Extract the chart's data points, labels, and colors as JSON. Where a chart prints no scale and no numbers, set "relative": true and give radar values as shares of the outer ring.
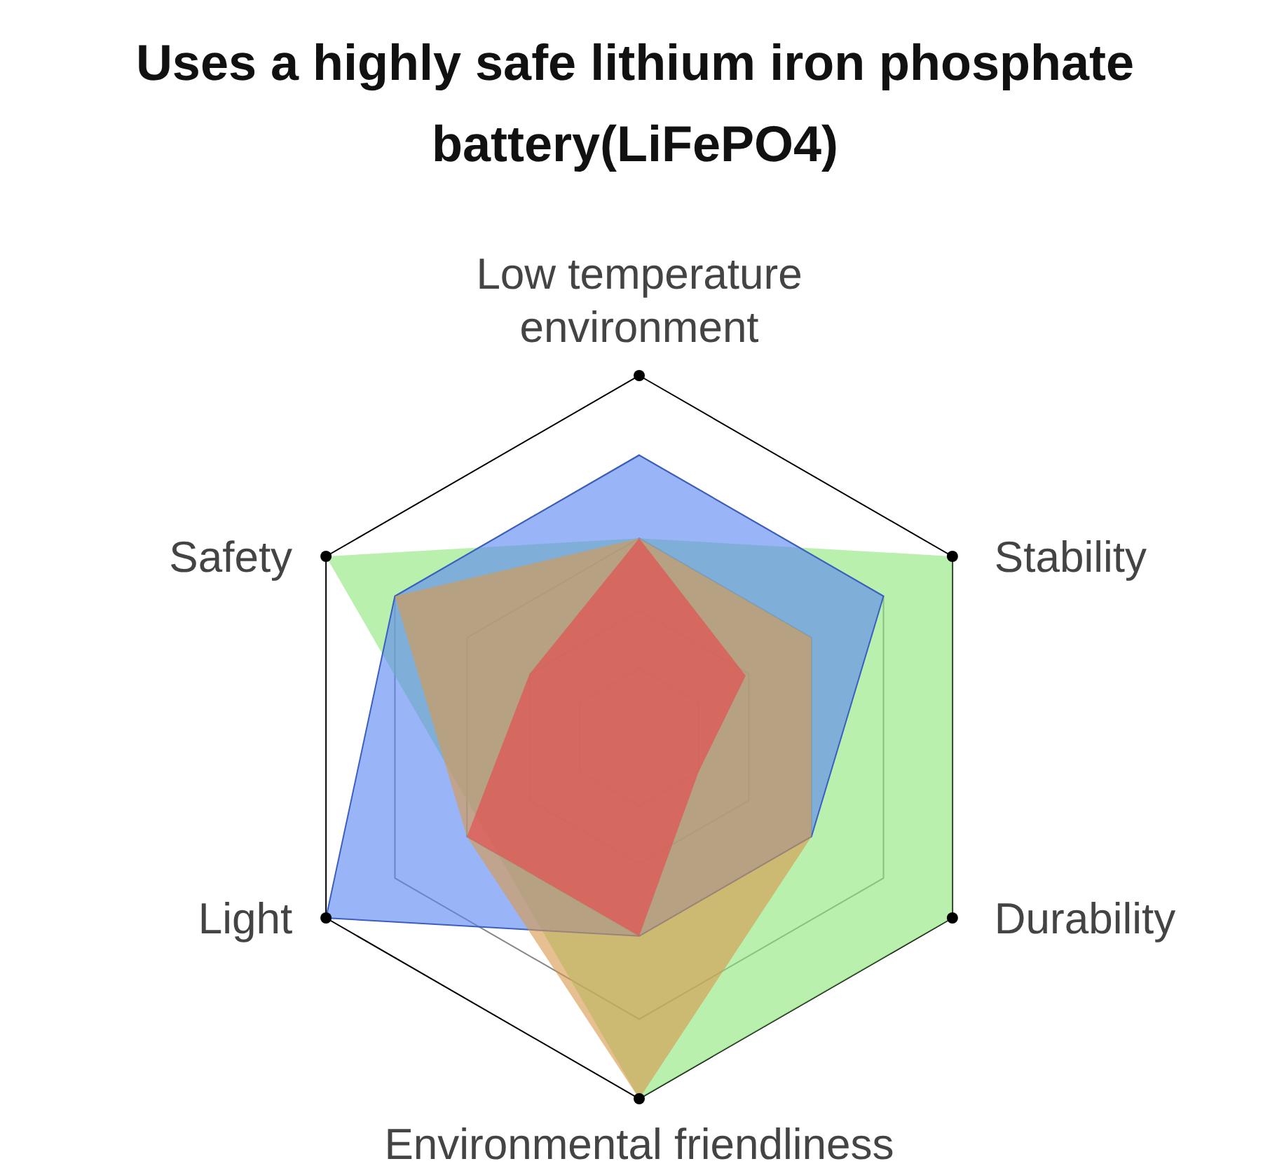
{
  "chart_data": {
    "type": "radar",
    "title": "Uses a highly safe lithium iron phosphate battery(LiFePO4)",
    "relative": true,
    "grid": true,
    "legend": false,
    "categories": [
      "Low temperature environment",
      "Stability",
      "Durability",
      "Environmental friendliness",
      "Light",
      "Safety"
    ],
    "series": [
      {
        "color": "#8fe67c",
        "values": [
          0.55,
          1,
          1,
          1,
          0.5,
          1
        ]
      },
      {
        "color": "#5a88f2",
        "values": [
          0.78,
          0.78,
          0.55,
          0.55,
          1,
          0.78
        ]
      },
      {
        "color": "#d99a4e",
        "values": [
          0.55,
          0.55,
          0.55,
          1,
          0.55,
          0.78
        ]
      },
      {
        "color": "#e8474a",
        "values": [
          0.55,
          0.34,
          0.19,
          0.55,
          0.55,
          0.35
        ]
      }
    ]
  }
}
